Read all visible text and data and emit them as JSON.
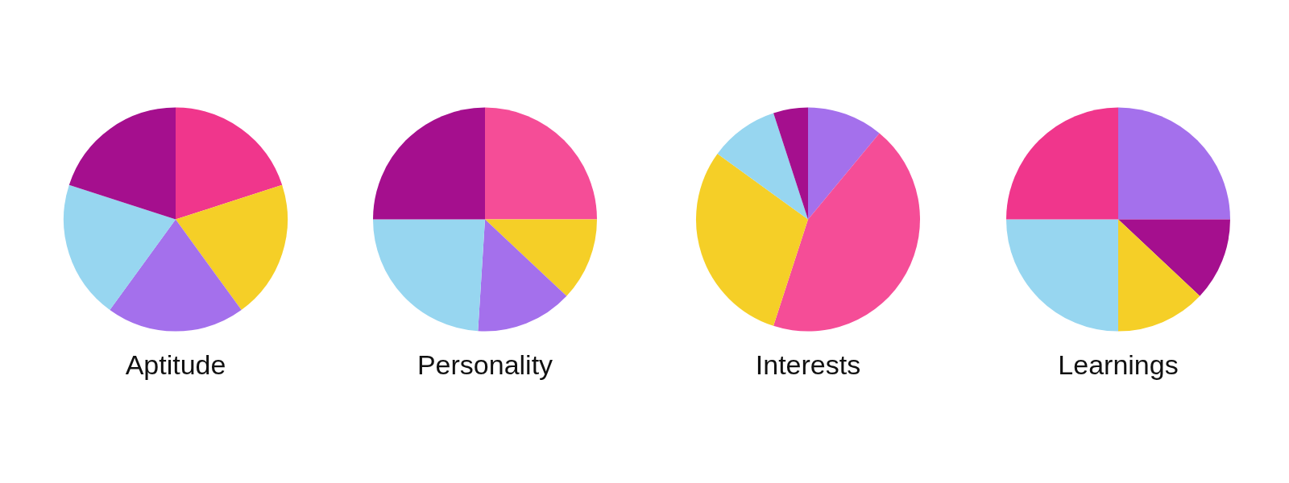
{
  "chart_data": [
    {
      "type": "pie",
      "title": "Aptitude",
      "categories": [
        null,
        null,
        null,
        null,
        null
      ],
      "values": [
        20,
        20,
        20,
        20,
        20
      ],
      "colors": [
        "#f0368c",
        "#f5cf27",
        "#a470ec",
        "#97d6f0",
        "#a50f8e"
      ],
      "legend": false
    },
    {
      "type": "pie",
      "title": "Personality",
      "categories": [
        null,
        null,
        null,
        null,
        null
      ],
      "values": [
        25,
        12,
        14,
        24,
        25
      ],
      "colors": [
        "#f54d97",
        "#f5cf27",
        "#a470ec",
        "#97d6f0",
        "#a50f8e"
      ],
      "legend": false
    },
    {
      "type": "pie",
      "title": "Interests",
      "categories": [
        null,
        null,
        null,
        null,
        null
      ],
      "values": [
        11,
        44,
        30,
        10,
        5
      ],
      "colors": [
        "#a470ec",
        "#f54d97",
        "#f5cf27",
        "#97d6f0",
        "#a50f8e"
      ],
      "legend": false
    },
    {
      "type": "pie",
      "title": "Learnings",
      "categories": [
        null,
        null,
        null,
        null,
        null
      ],
      "values": [
        25,
        12,
        13,
        25,
        25
      ],
      "colors": [
        "#a470ec",
        "#a50f8e",
        "#f5cf27",
        "#97d6f0",
        "#f0368c"
      ],
      "legend": false
    }
  ]
}
